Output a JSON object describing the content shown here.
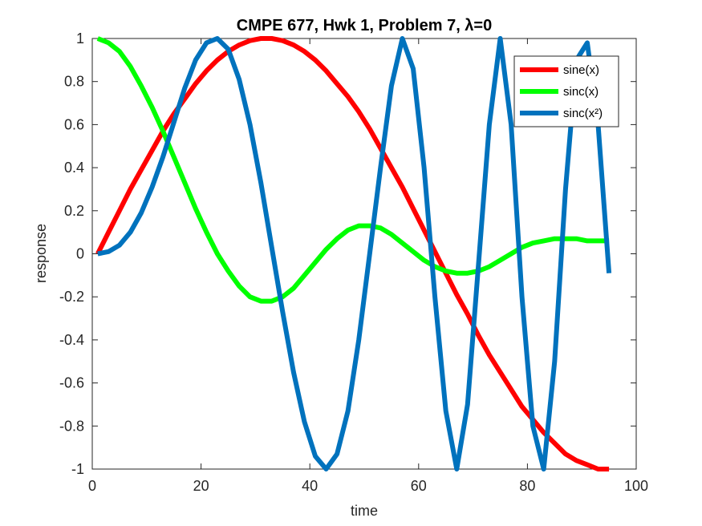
{
  "chart_data": {
    "type": "line",
    "title": "CMPE 677, Hwk 1, Problem 7, λ=0",
    "xlabel": "time",
    "ylabel": "response",
    "xlim": [
      0,
      100
    ],
    "ylim": [
      -1,
      1
    ],
    "xticks": [
      "0",
      "20",
      "40",
      "60",
      "80",
      "100"
    ],
    "yticks": [
      "-1",
      "-0.8",
      "-0.6",
      "-0.4",
      "-0.2",
      "0",
      "0.2",
      "0.4",
      "0.6",
      "0.8",
      "1"
    ],
    "grid": false,
    "legend_position": "top-right",
    "x": [
      1,
      3,
      5,
      7,
      9,
      11,
      13,
      15,
      17,
      19,
      21,
      23,
      25,
      27,
      29,
      31,
      33,
      35,
      37,
      39,
      41,
      43,
      45,
      47,
      49,
      51,
      53,
      55,
      57,
      59,
      61,
      63,
      65,
      67,
      69,
      71,
      73,
      75,
      77,
      79,
      81,
      83,
      85,
      87,
      89,
      91,
      93,
      95
    ],
    "series": [
      {
        "name": "sine(x)",
        "color": "#ff0000",
        "values": [
          0.0,
          0.1,
          0.2,
          0.3,
          0.39,
          0.48,
          0.57,
          0.65,
          0.72,
          0.79,
          0.85,
          0.9,
          0.94,
          0.97,
          0.99,
          1.0,
          1.0,
          0.99,
          0.97,
          0.94,
          0.9,
          0.85,
          0.79,
          0.73,
          0.66,
          0.58,
          0.49,
          0.4,
          0.31,
          0.21,
          0.11,
          0.01,
          -0.09,
          -0.19,
          -0.28,
          -0.38,
          -0.47,
          -0.55,
          -0.63,
          -0.71,
          -0.77,
          -0.83,
          -0.88,
          -0.93,
          -0.96,
          -0.98,
          -1.0,
          -1.0
        ]
      },
      {
        "name": "sinc(x)",
        "color": "#00ff00",
        "values": [
          1.0,
          0.98,
          0.94,
          0.87,
          0.78,
          0.68,
          0.57,
          0.45,
          0.33,
          0.21,
          0.1,
          0.0,
          -0.08,
          -0.15,
          -0.2,
          -0.22,
          -0.22,
          -0.2,
          -0.16,
          -0.1,
          -0.04,
          0.02,
          0.07,
          0.11,
          0.13,
          0.13,
          0.12,
          0.09,
          0.05,
          0.01,
          -0.03,
          -0.06,
          -0.08,
          -0.09,
          -0.09,
          -0.08,
          -0.06,
          -0.03,
          0.0,
          0.03,
          0.05,
          0.06,
          0.07,
          0.07,
          0.07,
          0.06,
          0.06,
          0.06
        ]
      },
      {
        "name": "sinc(x²)",
        "color": "#0072bd",
        "values": [
          0.0,
          0.01,
          0.04,
          0.1,
          0.19,
          0.31,
          0.45,
          0.61,
          0.77,
          0.9,
          0.98,
          1.0,
          0.95,
          0.81,
          0.6,
          0.33,
          0.03,
          -0.27,
          -0.55,
          -0.78,
          -0.94,
          -1.0,
          -0.93,
          -0.73,
          -0.4,
          0.0,
          0.4,
          0.78,
          1.0,
          0.86,
          0.4,
          -0.2,
          -0.73,
          -1.0,
          -0.7,
          -0.05,
          0.6,
          1.0,
          0.6,
          -0.2,
          -0.8,
          -1.0,
          -0.5,
          0.3,
          0.9,
          0.98,
          0.6,
          -0.09
        ]
      }
    ]
  }
}
